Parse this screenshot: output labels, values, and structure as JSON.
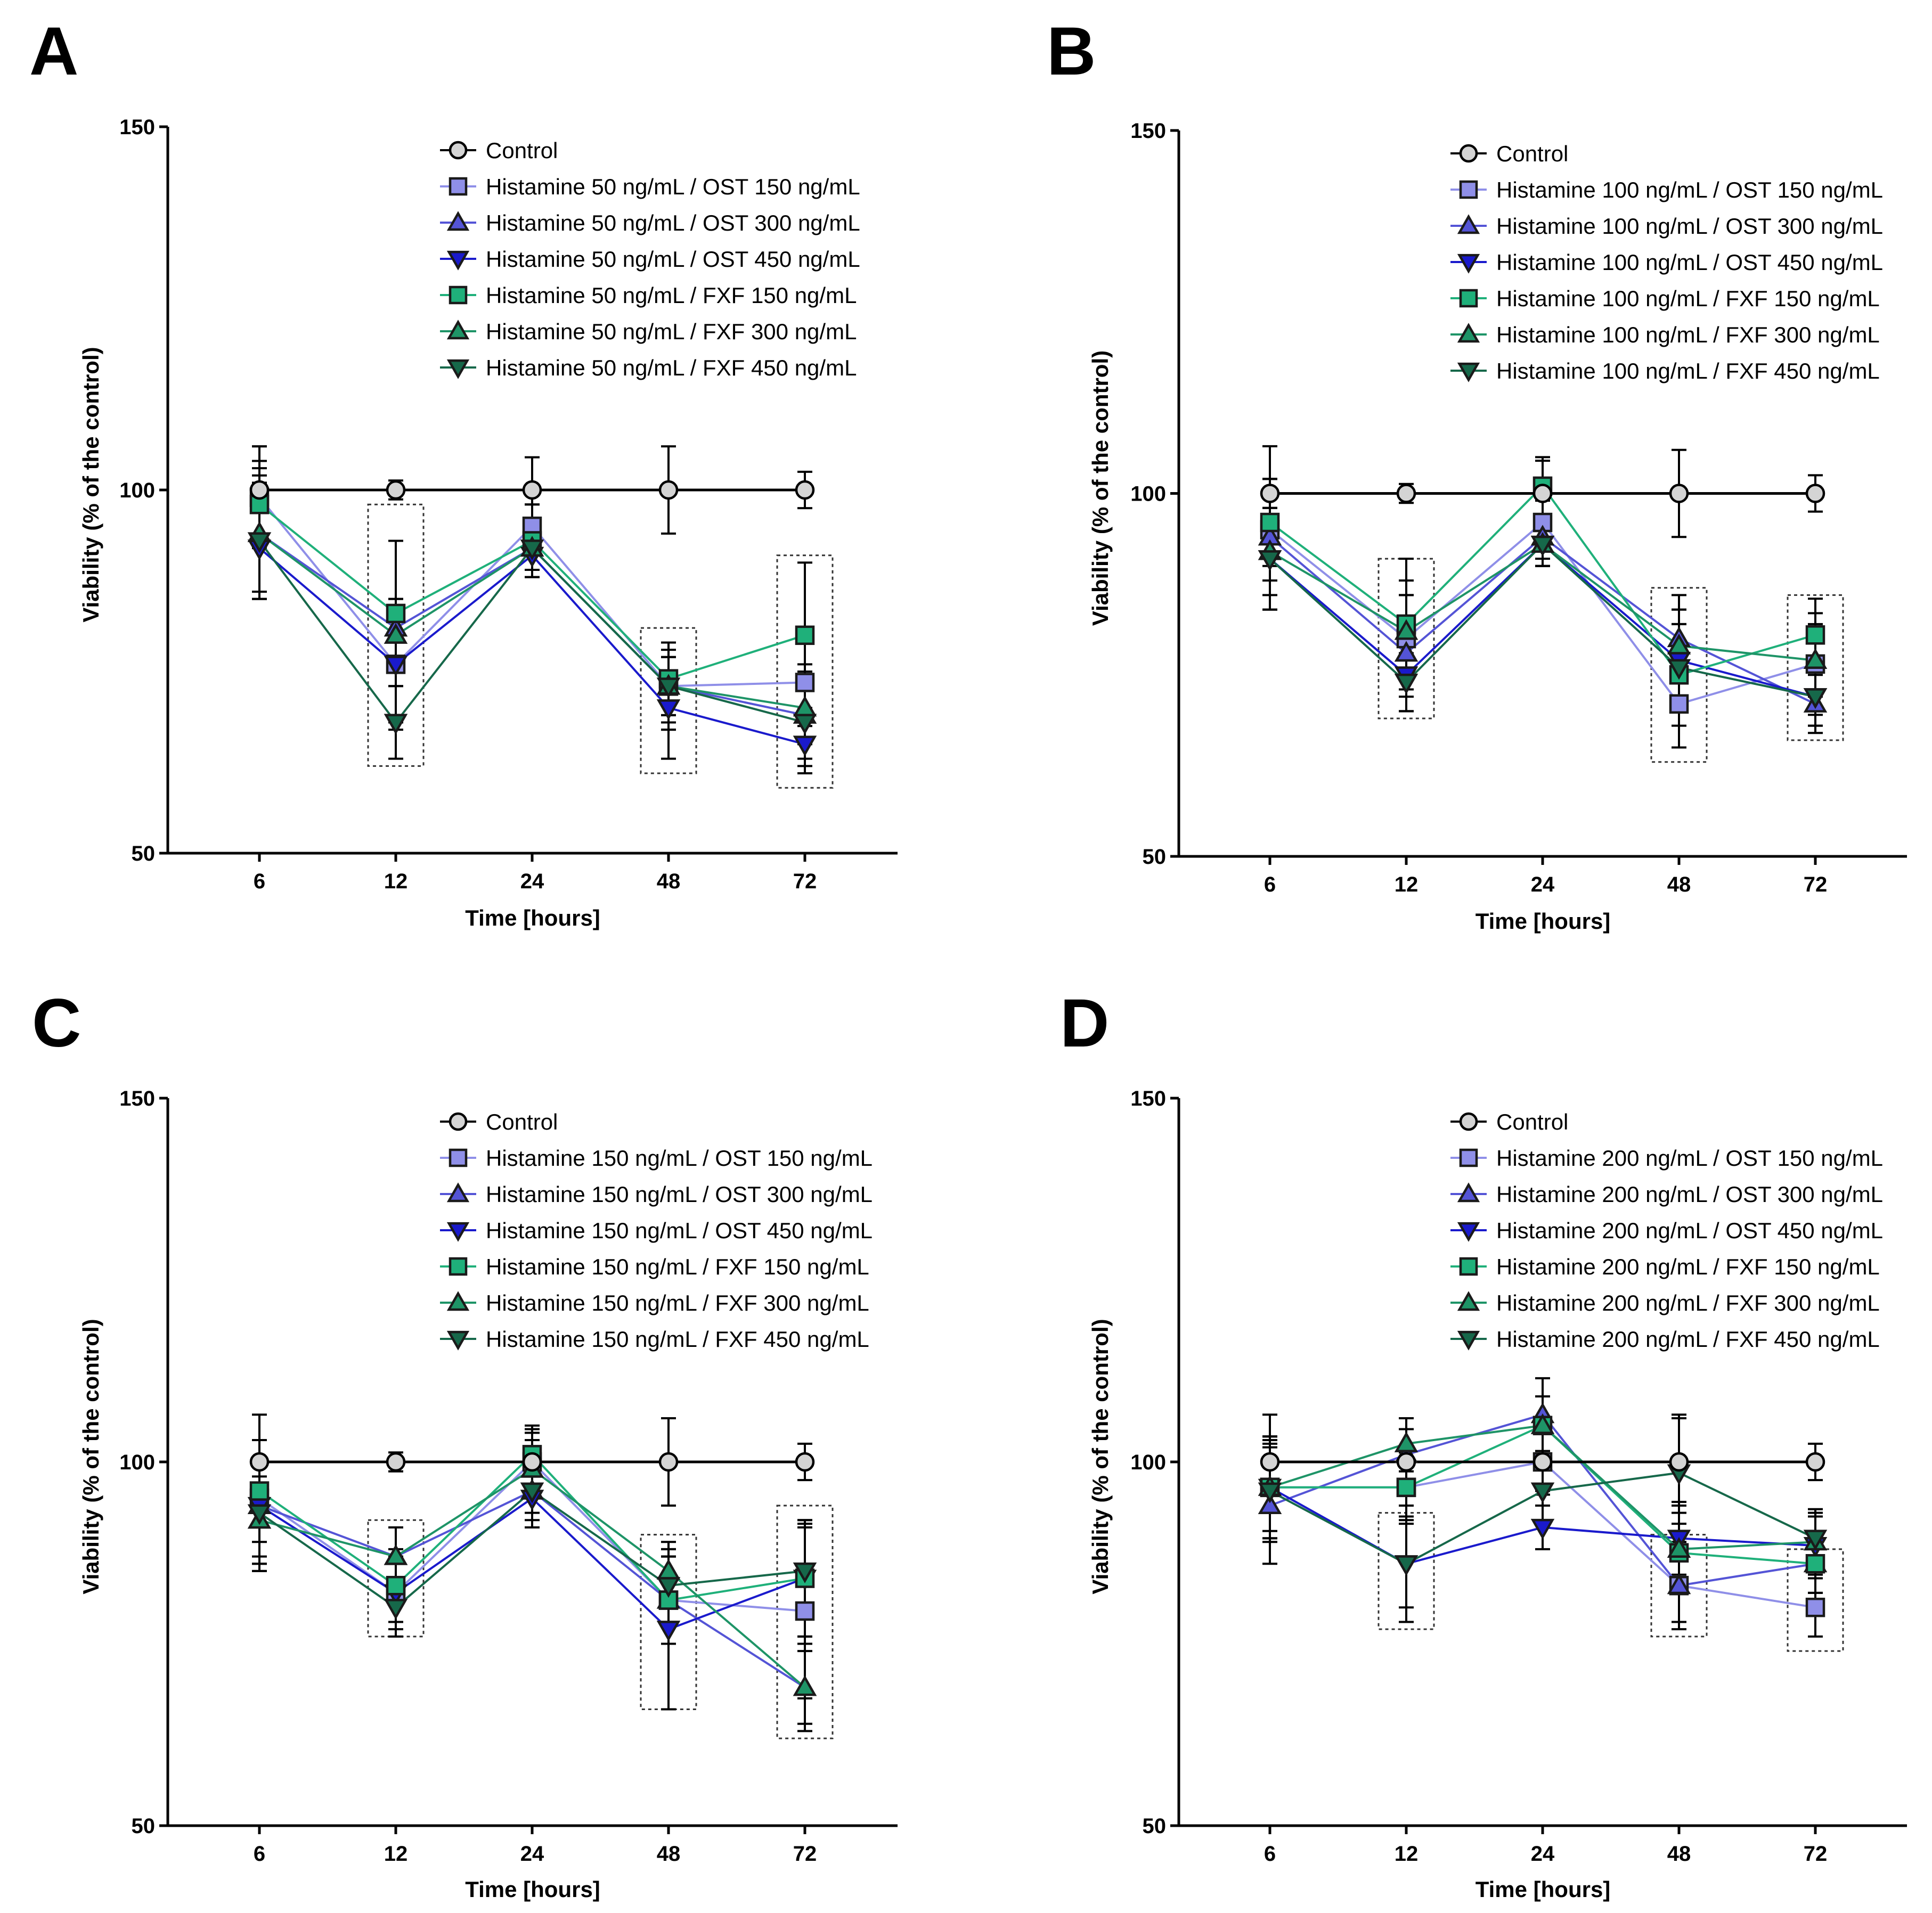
{
  "series_style": {
    "control": {
      "color": "#000000",
      "fill": "#d4d4d4",
      "marker": "circle"
    },
    "ost150": {
      "color": "#8f8fe8",
      "fill": "#8f8fe8",
      "marker": "square"
    },
    "ost300": {
      "color": "#5454d6",
      "fill": "#5454d6",
      "marker": "triangle-up"
    },
    "ost450": {
      "color": "#1a1acc",
      "fill": "#1a1acc",
      "marker": "triangle-down"
    },
    "fxf150": {
      "color": "#1fb07a",
      "fill": "#1fb07a",
      "marker": "square"
    },
    "fxf300": {
      "color": "#1e9467",
      "fill": "#1e9467",
      "marker": "triangle-up"
    },
    "fxf450": {
      "color": "#16684a",
      "fill": "#16684a",
      "marker": "triangle-down"
    }
  },
  "chart_data": [
    {
      "panel": "A",
      "type": "line",
      "xlabel": "Time [hours]",
      "ylabel": "Viability (% of the control)",
      "categories": [
        "6",
        "12",
        "24",
        "48",
        "72"
      ],
      "ylim": [
        50,
        150
      ],
      "yticks": [
        "50",
        "100",
        "150"
      ],
      "highlight_boxes": [
        {
          "category": "12",
          "ylim": [
            62,
            98
          ]
        },
        {
          "category": "48",
          "ylim": [
            61,
            81
          ]
        },
        {
          "category": "72",
          "ylim": [
            59,
            91
          ]
        }
      ],
      "series": [
        {
          "name": "Control",
          "style": "control",
          "values": [
            100,
            100,
            100,
            100,
            100
          ],
          "errors": [
            6,
            1.3,
            4.5,
            6,
            2.5
          ]
        },
        {
          "name": "Histamine 50 ng/mL / OST 150 ng/mL",
          "style": "ost150",
          "values": [
            99,
            76,
            95,
            73,
            73.5
          ],
          "errors": [
            7,
            9,
            3,
            5,
            6
          ]
        },
        {
          "name": "Histamine 50 ng/mL / OST 300 ng/mL",
          "style": "ost300",
          "values": [
            94,
            81,
            92,
            73,
            69
          ],
          "errors": [
            8,
            12,
            3,
            6,
            7
          ]
        },
        {
          "name": "Histamine 50 ng/mL / OST 450 ng/mL",
          "style": "ost450",
          "values": [
            92,
            76,
            91,
            70,
            65
          ],
          "errors": [
            7,
            8,
            3,
            7,
            4
          ]
        },
        {
          "name": "Histamine 50 ng/mL / FXF 150 ng/mL",
          "style": "fxf150",
          "values": [
            98,
            83,
            93,
            74,
            80
          ],
          "errors": [
            6,
            10,
            5,
            5,
            10
          ]
        },
        {
          "name": "Histamine 50 ng/mL / FXF 300 ng/mL",
          "style": "fxf300",
          "values": [
            94,
            80,
            92,
            73,
            70
          ],
          "errors": [
            9,
            5,
            3,
            4,
            5
          ]
        },
        {
          "name": "Histamine 50 ng/mL / FXF 450 ng/mL",
          "style": "fxf450",
          "values": [
            93,
            68,
            92,
            73,
            68
          ],
          "errors": [
            8,
            5,
            3,
            6,
            5
          ]
        }
      ]
    },
    {
      "panel": "B",
      "type": "line",
      "xlabel": "Time [hours]",
      "ylabel": "Viability (% of the control)",
      "categories": [
        "6",
        "12",
        "24",
        "48",
        "72"
      ],
      "ylim": [
        50,
        150
      ],
      "yticks": [
        "50",
        "100",
        "150"
      ],
      "highlight_boxes": [
        {
          "category": "12",
          "ylim": [
            69,
            91
          ]
        },
        {
          "category": "48",
          "ylim": [
            63,
            87
          ]
        },
        {
          "category": "72",
          "ylim": [
            66,
            86
          ]
        }
      ],
      "series": [
        {
          "name": "Control",
          "style": "control",
          "values": [
            100,
            100,
            100,
            100,
            100
          ],
          "errors": [
            6.5,
            1.3,
            4.5,
            6,
            2.5
          ]
        },
        {
          "name": "Histamine 100 ng/mL / OST 150 ng/mL",
          "style": "ost150",
          "values": [
            95,
            80,
            96,
            71,
            76.5
          ],
          "errors": [
            7,
            8,
            3,
            6,
            7
          ]
        },
        {
          "name": "Histamine 100 ng/mL / OST 300 ng/mL",
          "style": "ost300",
          "values": [
            94,
            78,
            94,
            80,
            71
          ],
          "errors": [
            8,
            8,
            3,
            6,
            4
          ]
        },
        {
          "name": "Histamine 100 ng/mL / OST 450 ng/mL",
          "style": "ost450",
          "values": [
            91,
            75,
            93,
            77,
            72
          ],
          "errors": [
            7,
            5,
            3,
            7,
            4
          ]
        },
        {
          "name": "Histamine 100 ng/mL / FXF 150 ng/mL",
          "style": "fxf150",
          "values": [
            96,
            82,
            101,
            75,
            80.5
          ],
          "errors": [
            6,
            9,
            4,
            7,
            5
          ]
        },
        {
          "name": "Histamine 100 ng/mL / FXF 300 ng/mL",
          "style": "fxf300",
          "values": [
            92,
            81,
            93,
            79,
            77
          ],
          "errors": [
            8,
            5,
            3,
            5,
            5
          ]
        },
        {
          "name": "Histamine 100 ng/mL / FXF 450 ng/mL",
          "style": "fxf450",
          "values": [
            91,
            74,
            93,
            76,
            72
          ],
          "errors": [
            7,
            4,
            3,
            6,
            4
          ]
        }
      ]
    },
    {
      "panel": "C",
      "type": "line",
      "xlabel": "Time [hours]",
      "ylabel": "Viability (% of the control)",
      "categories": [
        "6",
        "12",
        "24",
        "48",
        "72"
      ],
      "ylim": [
        50,
        150
      ],
      "yticks": [
        "50",
        "100",
        "150"
      ],
      "highlight_boxes": [
        {
          "category": "12",
          "ylim": [
            76,
            92
          ]
        },
        {
          "category": "48",
          "ylim": [
            66,
            90
          ]
        },
        {
          "category": "72",
          "ylim": [
            62,
            94
          ]
        }
      ],
      "series": [
        {
          "name": "Control",
          "style": "control",
          "values": [
            100,
            100,
            100,
            100,
            100
          ],
          "errors": [
            6.5,
            1.3,
            4.5,
            6,
            2.5
          ]
        },
        {
          "name": "Histamine 150 ng/mL / OST 150 ng/mL",
          "style": "ost150",
          "values": [
            95,
            82,
            100,
            81,
            79.5
          ],
          "errors": [
            8,
            5,
            4,
            6,
            12
          ]
        },
        {
          "name": "Histamine 150 ng/mL / OST 300 ng/mL",
          "style": "ost300",
          "values": [
            94,
            87,
            96,
            81,
            69
          ],
          "errors": [
            9,
            4,
            4,
            6,
            6
          ]
        },
        {
          "name": "Histamine 150 ng/mL / OST 450 ng/mL",
          "style": "ost450",
          "values": [
            94,
            82,
            95,
            77,
            84
          ],
          "errors": [
            9,
            4,
            4,
            11,
            8
          ]
        },
        {
          "name": "Histamine 150 ng/mL / FXF 150 ng/mL",
          "style": "fxf150",
          "values": [
            96,
            83,
            101,
            81,
            84
          ],
          "errors": [
            7,
            5,
            4,
            6,
            8
          ]
        },
        {
          "name": "Histamine 150 ng/mL / FXF 300 ng/mL",
          "style": "fxf300",
          "values": [
            92,
            87,
            99,
            85,
            69
          ],
          "errors": [
            6,
            4,
            4,
            4,
            5
          ]
        },
        {
          "name": "Histamine 150 ng/mL / FXF 450 ng/mL",
          "style": "fxf450",
          "values": [
            93,
            80,
            96,
            83,
            85
          ],
          "errors": [
            7,
            4,
            3,
            5,
            6
          ]
        }
      ]
    },
    {
      "panel": "D",
      "type": "line",
      "xlabel": "Time [hours]",
      "ylabel": "Viability (% of the control)",
      "categories": [
        "6",
        "12",
        "24",
        "48",
        "72"
      ],
      "ylim": [
        50,
        150
      ],
      "yticks": [
        "50",
        "100",
        "150"
      ],
      "highlight_boxes": [
        {
          "category": "12",
          "ylim": [
            77,
            93
          ]
        },
        {
          "category": "48",
          "ylim": [
            76,
            90
          ]
        },
        {
          "category": "72",
          "ylim": [
            74,
            88
          ]
        }
      ],
      "series": [
        {
          "name": "Control",
          "style": "control",
          "values": [
            100,
            100,
            100,
            100,
            100
          ],
          "errors": [
            6.5,
            1.3,
            4.5,
            6,
            2.5
          ]
        },
        {
          "name": "Histamine 200 ng/mL / OST 150 ng/mL",
          "style": "ost150",
          "values": [
            96.5,
            96.5,
            100,
            83,
            80
          ],
          "errors": [
            7,
            5,
            4,
            6,
            4
          ]
        },
        {
          "name": "Histamine 200 ng/mL / OST 300 ng/mL",
          "style": "ost300",
          "values": [
            94,
            101,
            106.5,
            83,
            86
          ],
          "errors": [
            8,
            5,
            5,
            5,
            4
          ]
        },
        {
          "name": "Histamine 200 ng/mL / OST 450 ng/mL",
          "style": "ost450",
          "values": [
            96.5,
            86,
            91,
            89.5,
            88.5
          ],
          "errors": [
            7,
            8,
            3,
            5,
            4
          ]
        },
        {
          "name": "Histamine 200 ng/mL / FXF 150 ng/mL",
          "style": "fxf150",
          "values": [
            96.5,
            96.5,
            105,
            87.5,
            86
          ],
          "errors": [
            7,
            4,
            4,
            4,
            4
          ]
        },
        {
          "name": "Histamine 200 ng/mL / FXF 300 ng/mL",
          "style": "fxf300",
          "values": [
            96.5,
            102.5,
            105,
            88,
            89
          ],
          "errors": [
            6,
            2,
            4,
            5,
            4
          ]
        },
        {
          "name": "Histamine 200 ng/mL / FXF 450 ng/mL",
          "style": "fxf450",
          "values": [
            96,
            86,
            96,
            98.5,
            89.5
          ],
          "errors": [
            7,
            6,
            4,
            8,
            4
          ]
        }
      ]
    }
  ]
}
